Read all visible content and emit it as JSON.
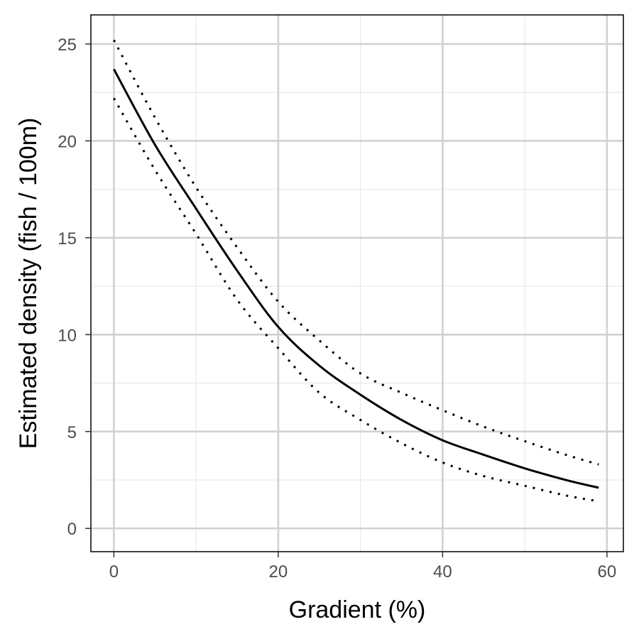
{
  "chart_data": {
    "type": "line",
    "title": "",
    "xlabel": "Gradient (%)",
    "ylabel": "Estimated density (fish / 100m)",
    "xlim": [
      -2.8,
      62.0
    ],
    "ylim": [
      -1.2,
      26.5
    ],
    "x_ticks": [
      0,
      20,
      40,
      60
    ],
    "y_ticks": [
      0,
      5,
      10,
      15,
      20,
      25
    ],
    "x_minor_ticks": [
      10,
      30,
      50
    ],
    "y_minor_ticks": [
      2.5,
      7.5,
      12.5,
      17.5,
      22.5
    ],
    "grid": true,
    "legend": "none",
    "series": [
      {
        "role": "estimate",
        "line_style": "solid",
        "color": "#000000",
        "x": [
          0,
          5,
          10,
          15,
          20,
          25,
          30,
          35,
          40,
          45,
          50,
          55,
          59
        ],
        "y": [
          23.7,
          19.8,
          16.5,
          13.3,
          10.4,
          8.4,
          6.9,
          5.6,
          4.55,
          3.8,
          3.1,
          2.5,
          2.1
        ]
      },
      {
        "role": "upper bound",
        "line_style": "dotted",
        "color": "#000000",
        "x": [
          0,
          5,
          10,
          15,
          20,
          25,
          30,
          35,
          40,
          45,
          50,
          55,
          59
        ],
        "y": [
          25.2,
          21.2,
          17.6,
          14.5,
          11.7,
          9.7,
          8.0,
          7.0,
          6.1,
          5.25,
          4.5,
          3.8,
          3.3
        ]
      },
      {
        "role": "lower bound",
        "line_style": "dotted",
        "color": "#000000",
        "x": [
          0,
          5,
          10,
          15,
          20,
          25,
          30,
          35,
          40,
          45,
          50,
          55,
          59
        ],
        "y": [
          22.2,
          18.5,
          15.2,
          11.8,
          9.3,
          7.0,
          5.6,
          4.4,
          3.4,
          2.7,
          2.2,
          1.7,
          1.4
        ]
      }
    ]
  }
}
